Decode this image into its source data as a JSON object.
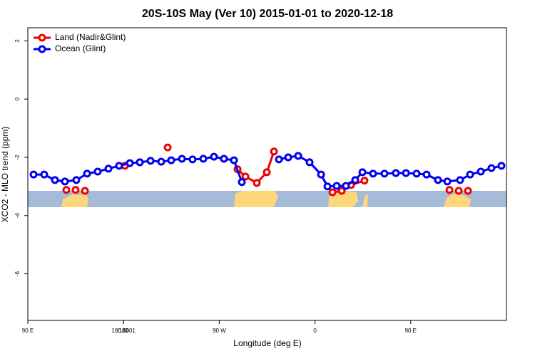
{
  "chart_data": {
    "type": "line",
    "title": "20S-10S May (Ver 10)   2015-01-01 to 2020-12-18",
    "xlabel": "Longitude (deg E)",
    "ylabel": "XCO2 - MLO trend (ppm)",
    "xlim": [
      90,
      540
    ],
    "xticks": [
      {
        "value": 90,
        "label": "90 E"
      },
      180,
      {
        "value": 270,
        "label": "90 W"
      },
      {
        "value": 360,
        "label": "0"
      },
      {
        "value": 450,
        "label": "90 E"
      },
      180.0001
    ],
    "ylim": [
      -7.6,
      2.45
    ],
    "yticks": [
      -6,
      -4,
      -2,
      0,
      2
    ],
    "legend": "top-left",
    "series": [
      {
        "name": "Land (Nadir&Glint)",
        "color": "#ee0000",
        "x": [
          126.2,
          null,
          134.9,
          null,
          143.7,
          null,
          181.2,
          null,
          221.5,
          null,
          287.2,
          294.6,
          305.3,
          314.7,
          321.4,
          null,
          376.4,
          385.1,
          393.8,
          406.5,
          null,
          486.4,
          null,
          495.1,
          null,
          503.8
        ],
        "values": [
          -3.12,
          null,
          -3.12,
          null,
          -3.15,
          null,
          -2.29,
          null,
          -1.66,
          null,
          -2.41,
          -2.66,
          -2.88,
          -2.51,
          -1.8,
          null,
          -3.2,
          -3.15,
          -2.95,
          -2.8,
          null,
          -3.12,
          null,
          -3.15,
          null,
          -3.15
        ]
      },
      {
        "name": "Ocean (Glint)",
        "color": "#0000ee",
        "x": [
          95.4,
          105.4,
          115.5,
          124.9,
          135.6,
          145.7,
          155.7,
          165.8,
          175.8,
          185.9,
          195.3,
          205.4,
          215.4,
          224.8,
          234.9,
          244.9,
          255,
          265,
          274.4,
          283.8,
          291.2,
          null,
          326.1,
          334.8,
          344.2,
          354.9,
          365.7,
          371.7,
          380.4,
          389.1,
          397.8,
          404.6,
          414.6,
          425.3,
          436,
          445.5,
          455.5,
          464.9,
          475.6,
          484.4,
          496.4,
          505.8,
          515.9,
          525.9,
          535.3
        ],
        "values": [
          -2.59,
          -2.59,
          -2.78,
          -2.83,
          -2.78,
          -2.56,
          -2.49,
          -2.39,
          -2.29,
          -2.2,
          -2.17,
          -2.12,
          -2.15,
          -2.1,
          -2.05,
          -2.07,
          -2.05,
          -1.98,
          -2.05,
          -2.1,
          -2.85,
          null,
          -2.07,
          -2.0,
          -1.95,
          -2.17,
          -2.59,
          -3.0,
          -2.98,
          -2.98,
          -2.78,
          -2.51,
          -2.56,
          -2.56,
          -2.54,
          -2.54,
          -2.56,
          -2.59,
          -2.78,
          -2.83,
          -2.78,
          -2.59,
          -2.49,
          -2.37,
          -2.29
        ]
      }
    ]
  }
}
